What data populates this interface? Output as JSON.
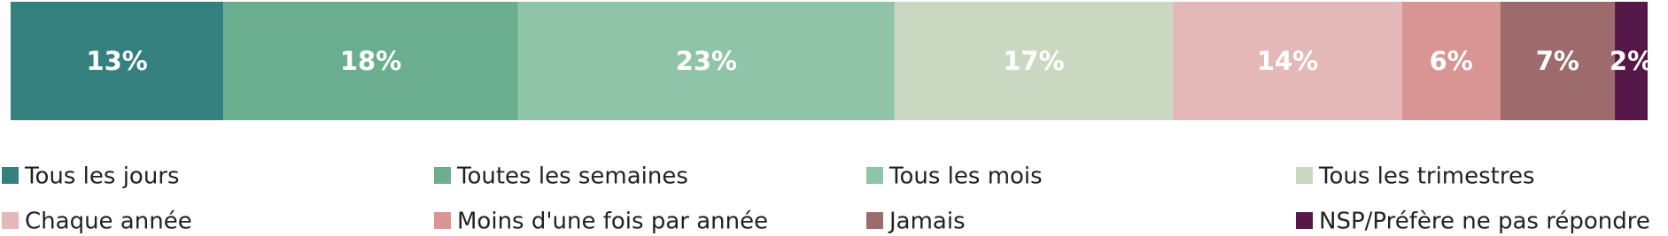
{
  "chart_data": {
    "type": "stacked-hbar",
    "orientation": "horizontal",
    "stacked": true,
    "xlim": [
      0,
      100
    ],
    "legend": "bottom",
    "series": [
      {
        "name": "Tous les jours",
        "color": "#34807f",
        "values": [
          13
        ],
        "value_labels": [
          "13%"
        ]
      },
      {
        "name": "Toutes les semaines",
        "color": "#6aae8f",
        "values": [
          18
        ],
        "value_labels": [
          "18%"
        ]
      },
      {
        "name": "Tous les mois",
        "color": "#8fc4a9",
        "values": [
          23
        ],
        "value_labels": [
          "23%"
        ]
      },
      {
        "name": "Tous les trimestres",
        "color": "#cbd8c1",
        "values": [
          17
        ],
        "value_labels": [
          "17%"
        ]
      },
      {
        "name": "Chaque année",
        "color": "#e4b8b7",
        "values": [
          14
        ],
        "value_labels": [
          "14%"
        ]
      },
      {
        "name": "Moins d'une fois par année",
        "color": "#d89594",
        "values": [
          6
        ],
        "value_labels": [
          "6%"
        ]
      },
      {
        "name": "Jamais",
        "color": "#9e6b6c",
        "values": [
          7
        ],
        "value_labels": [
          "7%"
        ]
      },
      {
        "name": "NSP/Préfère ne pas répondre",
        "color": "#561749",
        "values": [
          2
        ],
        "value_labels": [
          "2%"
        ]
      }
    ]
  }
}
